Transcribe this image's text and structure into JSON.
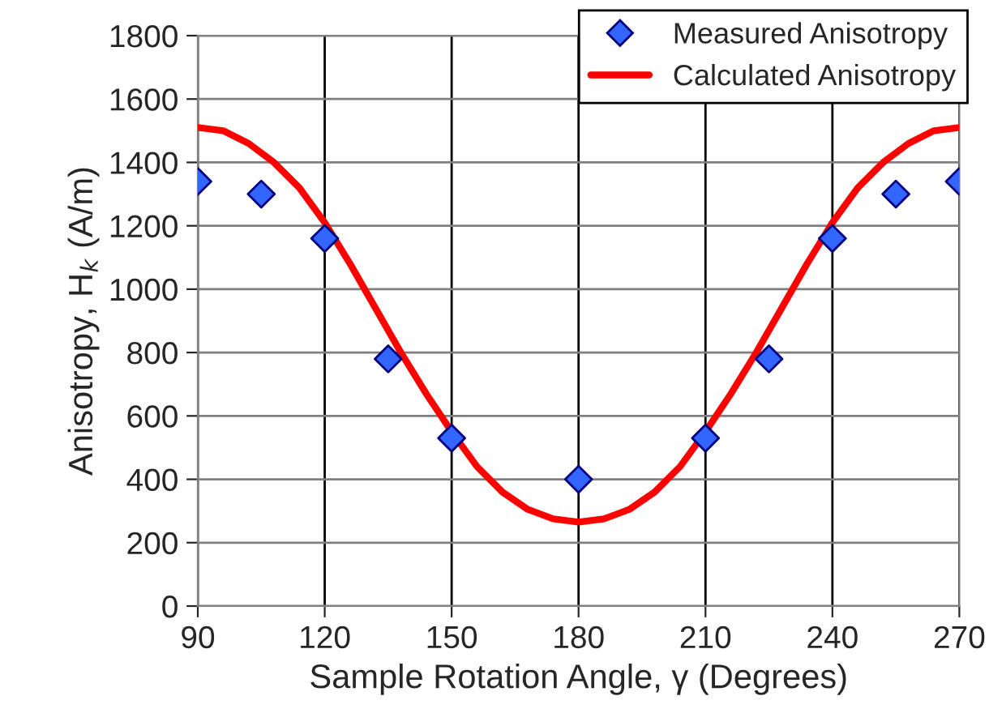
{
  "chart_data": {
    "type": "line",
    "xlabel": "Sample Rotation Angle, γ (Degrees)",
    "ylabel": "Anisotropy, H$_{k}$ (A/m)",
    "xlim": [
      90,
      270
    ],
    "xticks": [
      90,
      120,
      150,
      180,
      210,
      240,
      270
    ],
    "ylim": [
      0,
      1800
    ],
    "yticks": [
      0,
      200,
      400,
      600,
      800,
      1000,
      1200,
      1400,
      1600,
      1800
    ],
    "grid": true,
    "legend": "top right",
    "series": [
      {
        "name": "Measured Anisotropy",
        "type": "scatter",
        "marker": "diamond",
        "color": "#3366ff",
        "x": [
          90,
          105,
          120,
          135,
          150,
          180,
          210,
          225,
          240,
          255,
          270
        ],
        "values": [
          1340,
          1300,
          1160,
          780,
          530,
          400,
          530,
          780,
          1160,
          1300,
          1340
        ]
      },
      {
        "name": "Calculated Anisotropy",
        "color": "#ff0000",
        "x": [
          90,
          96,
          102,
          108,
          114,
          120,
          126,
          132,
          138,
          144,
          150,
          156,
          162,
          168,
          174,
          180,
          186,
          192,
          198,
          204,
          210,
          216,
          222,
          228,
          234,
          240,
          246,
          252,
          258,
          264,
          270
        ],
        "values": [
          1510,
          1500,
          1460,
          1400,
          1320,
          1210,
          1080,
          940,
          800,
          670,
          550,
          440,
          360,
          305,
          275,
          265,
          275,
          305,
          360,
          440,
          550,
          670,
          800,
          940,
          1080,
          1210,
          1320,
          1400,
          1460,
          1500,
          1510
        ]
      }
    ]
  }
}
